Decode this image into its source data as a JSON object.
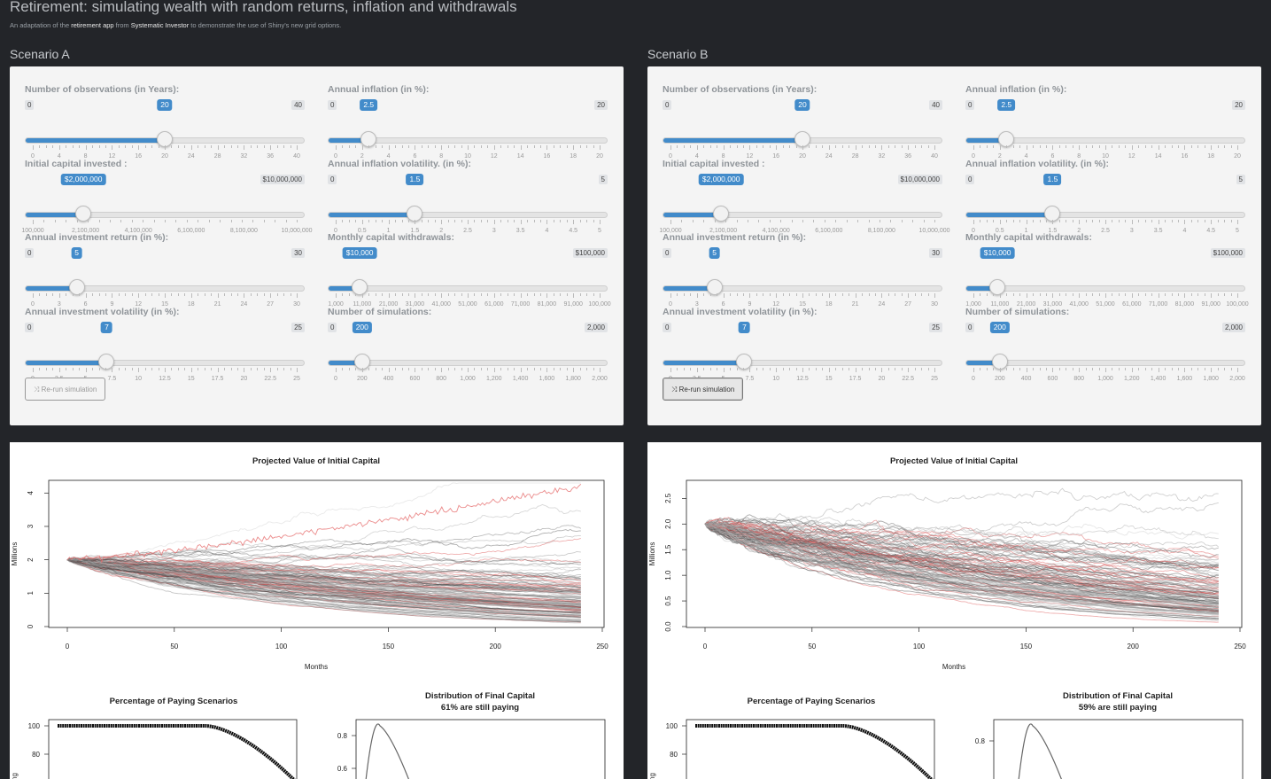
{
  "header": {
    "title": "Retirement: simulating wealth with random returns, inflation and withdrawals",
    "subtitle_pre": "An adaptation of the ",
    "subtitle_link1": "retirement app",
    "subtitle_mid": " from ",
    "subtitle_link2": "Systematic Investor",
    "subtitle_post": " to demonstrate the use of Shiny's new grid options."
  },
  "scenarios": [
    {
      "title": "Scenario A",
      "button": "Re-run simulation",
      "button_active": false,
      "sliders": [
        {
          "label": "Number of observations (in Years):",
          "min_label": "0",
          "max_label": "40",
          "value_label": "20",
          "min": 0,
          "max": 40,
          "value": 20,
          "tick_labels": [
            "0",
            "4",
            "8",
            "12",
            "16",
            "20",
            "24",
            "28",
            "32",
            "36",
            "40"
          ]
        },
        {
          "label": "Annual inflation (in %):",
          "min_label": "0",
          "max_label": "20",
          "value_label": "2.5",
          "min": 0,
          "max": 20,
          "value": 2.5,
          "tick_labels": [
            "0",
            "2",
            "4",
            "6",
            "8",
            "10",
            "12",
            "14",
            "16",
            "18",
            "20"
          ]
        },
        {
          "label": "Initial capital invested :",
          "min_label": "$100,000",
          "max_label": "$10,000,000",
          "value_label": "$2,000,000",
          "min": 100000,
          "max": 10000000,
          "value": 2000000,
          "hide_min": true,
          "tick_labels": [
            "100,000",
            "2,100,000",
            "4,100,000",
            "6,100,000",
            "8,100,000",
            "10,000,000"
          ]
        },
        {
          "label": "Annual inflation volatility. (in %):",
          "min_label": "0",
          "max_label": "5",
          "value_label": "1.5",
          "min": 0,
          "max": 5,
          "value": 1.5,
          "tick_labels": [
            "0",
            "0.5",
            "1",
            "1.5",
            "2",
            "2.5",
            "3",
            "3.5",
            "4",
            "4.5",
            "5"
          ]
        },
        {
          "label": "Annual investment return (in %):",
          "min_label": "0",
          "max_label": "30",
          "value_label": "5",
          "min": 0,
          "max": 30,
          "value": 5,
          "tick_labels": [
            "0",
            "3",
            "6",
            "9",
            "12",
            "15",
            "18",
            "21",
            "24",
            "27",
            "30"
          ]
        },
        {
          "label": "Monthly capital withdrawals:",
          "min_label": "$1,000",
          "max_label": "$100,000",
          "value_label": "$10,000",
          "min": 1000,
          "max": 100000,
          "value": 10000,
          "hide_min": true,
          "tick_labels": [
            "1,000",
            "11,000",
            "21,000",
            "31,000",
            "41,000",
            "51,000",
            "61,000",
            "71,000",
            "81,000",
            "91,000",
            "100,000"
          ]
        },
        {
          "label": "Annual investment volatility (in %):",
          "min_label": "0",
          "max_label": "25",
          "value_label": "7",
          "min": 0,
          "max": 25,
          "value": 7,
          "tick_labels": [
            "0",
            "2.5",
            "5",
            "7.5",
            "10",
            "12.5",
            "15",
            "17.5",
            "20",
            "22.5",
            "25"
          ]
        },
        {
          "label": "Number of simulations:",
          "min_label": "0",
          "max_label": "2,000",
          "value_label": "200",
          "min": 0,
          "max": 2000,
          "value": 200,
          "tick_labels": [
            "0",
            "200",
            "400",
            "600",
            "800",
            "1,000",
            "1,200",
            "1,400",
            "1,600",
            "1,800",
            "2,000"
          ]
        }
      ],
      "chart_data": [
        {
          "type": "line",
          "title": "Projected Value of Initial Capital",
          "xlabel": "Months",
          "ylabel": "Millions",
          "xlim": [
            0,
            250
          ],
          "ylim": [
            0,
            4.3
          ],
          "x_ticks": [
            "0",
            "50",
            "100",
            "150",
            "200",
            "250"
          ],
          "y_ticks": [
            "0",
            "1",
            "2",
            "3",
            "4"
          ],
          "y_tick_values": [
            0,
            1,
            2,
            3,
            4
          ],
          "n_paths": 200,
          "start_value": 2.0,
          "highlight_path_end": 4.2
        },
        {
          "type": "line",
          "title": "Percentage of Paying Scenarios",
          "ylabel": "% Paying",
          "y_ticks": [
            "80",
            "100"
          ],
          "y_tick_values": [
            80,
            100
          ]
        },
        {
          "type": "line",
          "title": "Distribution of Final Capital",
          "subtitle": "61% are still paying",
          "y_ticks": [
            "0.6",
            "0.8"
          ],
          "y_tick_values": [
            0.6,
            0.8
          ]
        }
      ]
    },
    {
      "title": "Scenario B",
      "button": "Re-run simulation",
      "button_active": true,
      "sliders": [
        {
          "label": "Number of observations (in Years):",
          "min_label": "0",
          "max_label": "40",
          "value_label": "20",
          "min": 0,
          "max": 40,
          "value": 20,
          "tick_labels": [
            "0",
            "4",
            "8",
            "12",
            "16",
            "20",
            "24",
            "28",
            "32",
            "36",
            "40"
          ]
        },
        {
          "label": "Annual inflation (in %):",
          "min_label": "0",
          "max_label": "20",
          "value_label": "2.5",
          "min": 0,
          "max": 20,
          "value": 2.5,
          "tick_labels": [
            "0",
            "2",
            "4",
            "6",
            "8",
            "10",
            "12",
            "14",
            "16",
            "18",
            "20"
          ]
        },
        {
          "label": "Initial capital invested :",
          "min_label": "$100,000",
          "max_label": "$10,000,000",
          "value_label": "$2,000,000",
          "min": 100000,
          "max": 10000000,
          "value": 2000000,
          "hide_min": true,
          "tick_labels": [
            "100,000",
            "2,100,000",
            "4,100,000",
            "6,100,000",
            "8,100,000",
            "10,000,000"
          ]
        },
        {
          "label": "Annual inflation volatility. (in %):",
          "min_label": "0",
          "max_label": "5",
          "value_label": "1.5",
          "min": 0,
          "max": 5,
          "value": 1.5,
          "tick_labels": [
            "0",
            "0.5",
            "1",
            "1.5",
            "2",
            "2.5",
            "3",
            "3.5",
            "4",
            "4.5",
            "5"
          ]
        },
        {
          "label": "Annual investment return (in %):",
          "min_label": "0",
          "max_label": "30",
          "value_label": "5",
          "min": 0,
          "max": 30,
          "value": 5,
          "tick_labels": [
            "0",
            "3",
            "6",
            "9",
            "12",
            "15",
            "18",
            "21",
            "24",
            "27",
            "30"
          ]
        },
        {
          "label": "Monthly capital withdrawals:",
          "min_label": "$1,000",
          "max_label": "$100,000",
          "value_label": "$10,000",
          "min": 1000,
          "max": 100000,
          "value": 10000,
          "hide_min": true,
          "tick_labels": [
            "1,000",
            "11,000",
            "21,000",
            "31,000",
            "41,000",
            "51,000",
            "61,000",
            "71,000",
            "81,000",
            "91,000",
            "100,000"
          ]
        },
        {
          "label": "Annual investment volatility (in %):",
          "min_label": "0",
          "max_label": "25",
          "value_label": "7",
          "min": 0,
          "max": 25,
          "value": 7,
          "tick_labels": [
            "0",
            "2.5",
            "5",
            "7.5",
            "10",
            "12.5",
            "15",
            "17.5",
            "20",
            "22.5",
            "25"
          ]
        },
        {
          "label": "Number of simulations:",
          "min_label": "0",
          "max_label": "2,000",
          "value_label": "200",
          "min": 0,
          "max": 2000,
          "value": 200,
          "tick_labels": [
            "0",
            "200",
            "400",
            "600",
            "800",
            "1,000",
            "1,200",
            "1,400",
            "1,600",
            "1,800",
            "2,000"
          ]
        }
      ],
      "chart_data": [
        {
          "type": "line",
          "title": "Projected Value of Initial Capital",
          "xlabel": "Months",
          "ylabel": "Millions",
          "xlim": [
            0,
            250
          ],
          "ylim": [
            0,
            2.8
          ],
          "x_ticks": [
            "0",
            "50",
            "100",
            "150",
            "200",
            "250"
          ],
          "y_ticks": [
            "0.0",
            "0.5",
            "1.0",
            "1.5",
            "2.0",
            "2.5"
          ],
          "y_tick_values": [
            0,
            0.5,
            1,
            1.5,
            2,
            2.5
          ],
          "n_paths": 200,
          "start_value": 2.0
        },
        {
          "type": "line",
          "title": "Percentage of Paying Scenarios",
          "ylabel": "% Paying",
          "y_ticks": [
            "80",
            "100"
          ],
          "y_tick_values": [
            80,
            100
          ]
        },
        {
          "type": "line",
          "title": "Distribution of Final Capital",
          "subtitle": "59% are still paying",
          "y_ticks": [
            "0.8"
          ],
          "y_tick_values": [
            0.8
          ]
        }
      ]
    }
  ]
}
